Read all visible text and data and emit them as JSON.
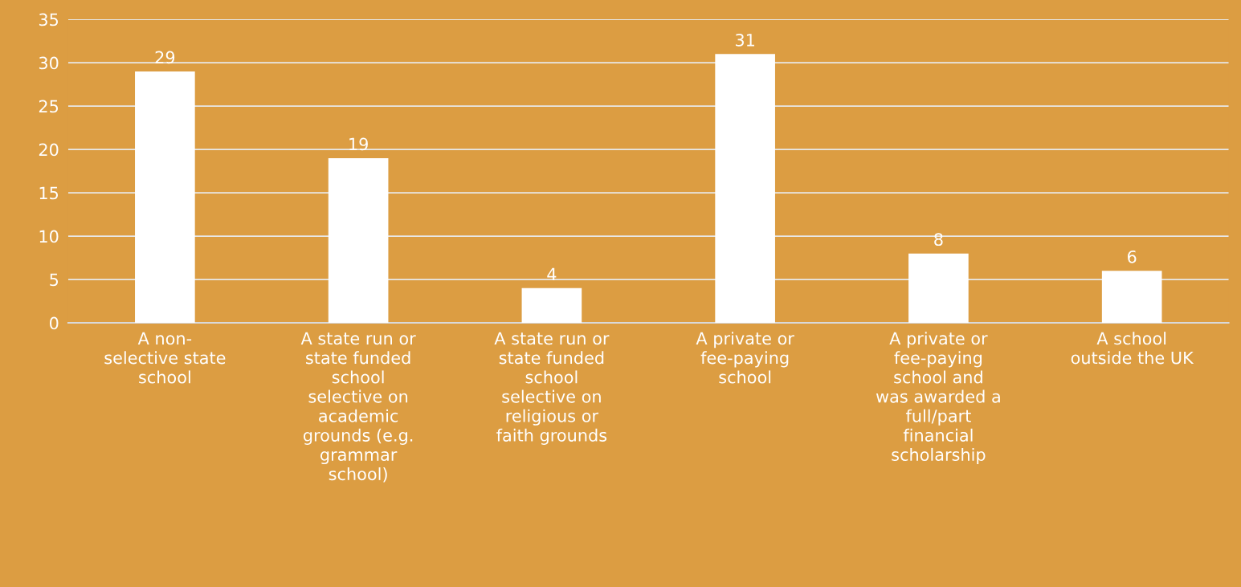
{
  "chart_data": {
    "type": "bar",
    "categories": [
      "A non-\nselective state\nschool",
      "A state run or\nstate funded\nschool\nselective on\nacademic\ngrounds (e.g.\ngrammar\nschool)",
      "A state run or\nstate funded\nschool\nselective on\nreligious or\nfaith grounds",
      "A private or\nfee-paying\nschool",
      "A private or\nfee-paying\nschool and\nwas awarded a\nfull/part\nfinancial\nscholarship",
      "A school\noutside the UK"
    ],
    "values": [
      29,
      19,
      4,
      31,
      8,
      6
    ],
    "color": "#ffffff",
    "ylim": [
      0,
      35
    ],
    "yticks": [
      0,
      5,
      10,
      15,
      20,
      25,
      30,
      35
    ],
    "grid": "y",
    "data_labels": true
  }
}
